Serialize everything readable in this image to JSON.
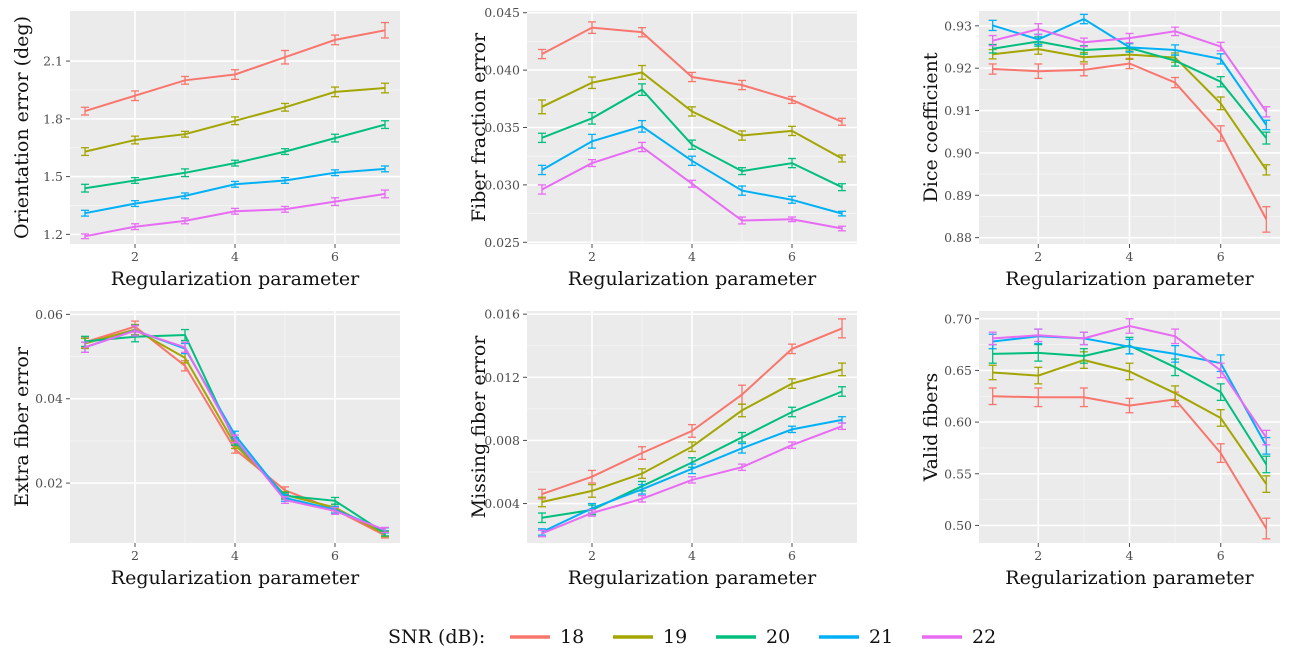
{
  "legend": {
    "title": "SNR (dB):",
    "placement": "bottom",
    "entries": [
      {
        "label": "18",
        "color": "#f8766d"
      },
      {
        "label": "19",
        "color": "#a3a500"
      },
      {
        "label": "20",
        "color": "#00bf7d"
      },
      {
        "label": "21",
        "color": "#00b0f6"
      },
      {
        "label": "22",
        "color": "#e76bf3"
      }
    ]
  },
  "chart_data": [
    {
      "type": "line",
      "xlabel": "Regularization parameter",
      "ylabel": "Orientation error (deg)",
      "x": [
        1,
        2,
        3,
        4,
        5,
        6,
        7
      ],
      "xlim": [
        0.7,
        7.3
      ],
      "xticks": [
        2,
        4,
        6
      ],
      "ylim": [
        1.15,
        2.36
      ],
      "yticks": [
        "1.2",
        "1.5",
        "1.8",
        "2.1"
      ],
      "grid": true,
      "error_bars": true,
      "series": [
        {
          "name": "18",
          "values": [
            1.84,
            1.92,
            2.0,
            2.03,
            2.12,
            2.21,
            2.26
          ],
          "err": [
            0.02,
            0.025,
            0.02,
            0.025,
            0.035,
            0.025,
            0.04
          ]
        },
        {
          "name": "19",
          "values": [
            1.63,
            1.69,
            1.72,
            1.79,
            1.86,
            1.94,
            1.96
          ],
          "err": [
            0.02,
            0.02,
            0.015,
            0.02,
            0.02,
            0.025,
            0.025
          ]
        },
        {
          "name": "20",
          "values": [
            1.44,
            1.48,
            1.52,
            1.57,
            1.63,
            1.7,
            1.77
          ],
          "err": [
            0.02,
            0.015,
            0.02,
            0.015,
            0.015,
            0.02,
            0.02
          ]
        },
        {
          "name": "21",
          "values": [
            1.31,
            1.36,
            1.4,
            1.46,
            1.48,
            1.52,
            1.54
          ],
          "err": [
            0.015,
            0.015,
            0.015,
            0.015,
            0.015,
            0.015,
            0.015
          ]
        },
        {
          "name": "22",
          "values": [
            1.19,
            1.24,
            1.27,
            1.32,
            1.33,
            1.37,
            1.41
          ],
          "err": [
            0.012,
            0.015,
            0.015,
            0.015,
            0.015,
            0.02,
            0.02
          ]
        }
      ]
    },
    {
      "type": "line",
      "xlabel": "Regularization parameter",
      "ylabel": "Fiber fraction error",
      "x": [
        1,
        2,
        3,
        4,
        5,
        6,
        7
      ],
      "xlim": [
        0.7,
        7.3
      ],
      "xticks": [
        2,
        4,
        6
      ],
      "ylim": [
        0.02485,
        0.04515
      ],
      "yticks": [
        "0.025",
        "0.030",
        "0.035",
        "0.040",
        "0.045"
      ],
      "grid": true,
      "error_bars": true,
      "series": [
        {
          "name": "18",
          "values": [
            0.0414,
            0.0437,
            0.0433,
            0.0394,
            0.0387,
            0.0374,
            0.0355
          ],
          "err": [
            0.0004,
            0.0005,
            0.0004,
            0.0004,
            0.0004,
            0.0003,
            0.0003
          ]
        },
        {
          "name": "19",
          "values": [
            0.0368,
            0.0389,
            0.0398,
            0.0364,
            0.0343,
            0.0347,
            0.0323
          ],
          "err": [
            0.0006,
            0.0005,
            0.0006,
            0.0004,
            0.0004,
            0.0004,
            0.0003
          ]
        },
        {
          "name": "20",
          "values": [
            0.0341,
            0.0358,
            0.0383,
            0.0335,
            0.0312,
            0.0319,
            0.0298
          ],
          "err": [
            0.0004,
            0.0005,
            0.0005,
            0.0004,
            0.0003,
            0.0004,
            0.0003
          ]
        },
        {
          "name": "21",
          "values": [
            0.0313,
            0.0338,
            0.0351,
            0.0321,
            0.0295,
            0.0287,
            0.0275
          ],
          "err": [
            0.0004,
            0.0006,
            0.0005,
            0.0004,
            0.0004,
            0.0003,
            0.0002
          ]
        },
        {
          "name": "22",
          "values": [
            0.0296,
            0.0319,
            0.0333,
            0.0301,
            0.0269,
            0.027,
            0.0262
          ],
          "err": [
            0.0004,
            0.0003,
            0.0004,
            0.0003,
            0.0003,
            0.0002,
            0.0002
          ]
        }
      ]
    },
    {
      "type": "line",
      "xlabel": "Regularization parameter",
      "ylabel": "Dice coefficient",
      "x": [
        1,
        2,
        3,
        4,
        5,
        6,
        7
      ],
      "xlim": [
        0.7,
        7.3
      ],
      "xticks": [
        2,
        4,
        6
      ],
      "ylim": [
        0.8785,
        0.9335
      ],
      "yticks": [
        "0.88",
        "0.89",
        "0.90",
        "0.91",
        "0.92",
        "0.93"
      ],
      "grid": true,
      "error_bars": true,
      "series": [
        {
          "name": "18",
          "values": [
            0.9198,
            0.9193,
            0.9196,
            0.9211,
            0.9166,
            0.9046,
            0.8843
          ],
          "err": [
            0.0012,
            0.0017,
            0.0014,
            0.0012,
            0.0012,
            0.0018,
            0.003
          ]
        },
        {
          "name": "19",
          "values": [
            0.9233,
            0.9245,
            0.9226,
            0.9232,
            0.9225,
            0.9117,
            0.896
          ],
          "err": [
            0.0011,
            0.0012,
            0.0011,
            0.0011,
            0.0011,
            0.0015,
            0.0012
          ]
        },
        {
          "name": "20",
          "values": [
            0.9246,
            0.9263,
            0.9243,
            0.9248,
            0.9218,
            0.9168,
            0.9035
          ],
          "err": [
            0.001,
            0.0011,
            0.001,
            0.001,
            0.0013,
            0.0012,
            0.0014
          ]
        },
        {
          "name": "21",
          "values": [
            0.9301,
            0.9268,
            0.9316,
            0.9249,
            0.9243,
            0.9222,
            0.9066
          ],
          "err": [
            0.0012,
            0.0012,
            0.0011,
            0.001,
            0.0012,
            0.0012,
            0.0011
          ]
        },
        {
          "name": "22",
          "values": [
            0.9265,
            0.9292,
            0.9261,
            0.9271,
            0.9287,
            0.9251,
            0.9097
          ],
          "err": [
            0.0012,
            0.0013,
            0.001,
            0.0011,
            0.001,
            0.001,
            0.0012
          ]
        }
      ]
    },
    {
      "type": "line",
      "xlabel": "Regularization parameter",
      "ylabel": "Extra fiber error",
      "x": [
        1,
        2,
        3,
        4,
        5,
        6,
        7
      ],
      "xlim": [
        0.7,
        7.3
      ],
      "xticks": [
        2,
        4,
        6
      ],
      "ylim": [
        0.0058,
        0.0608
      ],
      "yticks": [
        "0.02",
        "0.04",
        "0.06"
      ],
      "grid": true,
      "error_bars": true,
      "series": [
        {
          "name": "18",
          "values": [
            0.0534,
            0.0571,
            0.0478,
            0.028,
            0.0183,
            0.0137,
            0.0076
          ],
          "err": [
            0.0012,
            0.0013,
            0.0012,
            0.0009,
            0.0008,
            0.0008,
            0.0006
          ]
        },
        {
          "name": "19",
          "values": [
            0.0531,
            0.0564,
            0.0497,
            0.0291,
            0.0172,
            0.0142,
            0.0079
          ],
          "err": [
            0.0012,
            0.0012,
            0.0012,
            0.0009,
            0.0008,
            0.0008,
            0.0006
          ]
        },
        {
          "name": "20",
          "values": [
            0.0536,
            0.0547,
            0.0551,
            0.0299,
            0.017,
            0.0158,
            0.0081
          ],
          "err": [
            0.0012,
            0.0012,
            0.0013,
            0.0009,
            0.0008,
            0.0008,
            0.0006
          ]
        },
        {
          "name": "21",
          "values": [
            0.0522,
            0.0562,
            0.0519,
            0.0314,
            0.0165,
            0.0137,
            0.0088
          ],
          "err": [
            0.0012,
            0.0012,
            0.0012,
            0.0009,
            0.0008,
            0.0008,
            0.0006
          ]
        },
        {
          "name": "22",
          "values": [
            0.0522,
            0.0561,
            0.0522,
            0.0305,
            0.016,
            0.0134,
            0.0089
          ],
          "err": [
            0.0012,
            0.0012,
            0.0012,
            0.0009,
            0.0008,
            0.0008,
            0.0006
          ]
        }
      ]
    },
    {
      "type": "line",
      "xlabel": "Regularization parameter",
      "ylabel": "Missing fiber error",
      "x": [
        1,
        2,
        3,
        4,
        5,
        6,
        7
      ],
      "xlim": [
        0.7,
        7.3
      ],
      "xticks": [
        2,
        4,
        6
      ],
      "ylim": [
        0.0015,
        0.0162
      ],
      "yticks": [
        "0.004",
        "0.008",
        "0.012",
        "0.016"
      ],
      "grid": true,
      "error_bars": true,
      "series": [
        {
          "name": "18",
          "values": [
            0.0046,
            0.0057,
            0.0072,
            0.0086,
            0.0109,
            0.0138,
            0.0151
          ],
          "err": [
            0.0003,
            0.0004,
            0.0004,
            0.0004,
            0.0006,
            0.0003,
            0.0006
          ]
        },
        {
          "name": "19",
          "values": [
            0.0041,
            0.0048,
            0.0059,
            0.0076,
            0.0099,
            0.0116,
            0.0125
          ],
          "err": [
            0.0003,
            0.0004,
            0.0003,
            0.0003,
            0.0004,
            0.0003,
            0.0004
          ]
        },
        {
          "name": "20",
          "values": [
            0.0031,
            0.0036,
            0.0051,
            0.0066,
            0.0082,
            0.0098,
            0.0111
          ],
          "err": [
            0.0003,
            0.0003,
            0.0003,
            0.0003,
            0.0003,
            0.0003,
            0.0003
          ]
        },
        {
          "name": "21",
          "values": [
            0.0022,
            0.0037,
            0.0049,
            0.0062,
            0.0075,
            0.0087,
            0.0093
          ],
          "err": [
            0.0002,
            0.0003,
            0.0003,
            0.0003,
            0.0003,
            0.0002,
            0.0002
          ]
        },
        {
          "name": "22",
          "values": [
            0.0021,
            0.0034,
            0.0043,
            0.0055,
            0.0063,
            0.0077,
            0.0089
          ],
          "err": [
            0.0002,
            0.0002,
            0.0002,
            0.0002,
            0.0002,
            0.0002,
            0.0002
          ]
        }
      ]
    },
    {
      "type": "line",
      "xlabel": "Regularization parameter",
      "ylabel": "Valid fibers",
      "x": [
        1,
        2,
        3,
        4,
        5,
        6,
        7
      ],
      "xlim": [
        0.7,
        7.3
      ],
      "xticks": [
        2,
        4,
        6
      ],
      "ylim": [
        0.483,
        0.7075
      ],
      "yticks": [
        "0.50",
        "0.55",
        "0.60",
        "0.65",
        "0.70"
      ],
      "grid": true,
      "error_bars": true,
      "series": [
        {
          "name": "18",
          "values": [
            0.625,
            0.624,
            0.624,
            0.616,
            0.622,
            0.57,
            0.497
          ],
          "err": [
            0.008,
            0.009,
            0.009,
            0.007,
            0.007,
            0.009,
            0.01
          ]
        },
        {
          "name": "19",
          "values": [
            0.648,
            0.645,
            0.66,
            0.649,
            0.628,
            0.604,
            0.54
          ],
          "err": [
            0.007,
            0.008,
            0.008,
            0.008,
            0.007,
            0.008,
            0.008
          ]
        },
        {
          "name": "20",
          "values": [
            0.666,
            0.667,
            0.664,
            0.674,
            0.653,
            0.629,
            0.559
          ],
          "err": [
            0.009,
            0.008,
            0.007,
            0.008,
            0.008,
            0.008,
            0.008
          ]
        },
        {
          "name": "21",
          "values": [
            0.678,
            0.683,
            0.681,
            0.673,
            0.666,
            0.657,
            0.577
          ],
          "err": [
            0.007,
            0.007,
            0.006,
            0.007,
            0.008,
            0.008,
            0.008
          ]
        },
        {
          "name": "22",
          "values": [
            0.681,
            0.684,
            0.681,
            0.693,
            0.683,
            0.65,
            0.585
          ],
          "err": [
            0.006,
            0.006,
            0.006,
            0.007,
            0.007,
            0.007,
            0.007
          ]
        }
      ]
    }
  ]
}
